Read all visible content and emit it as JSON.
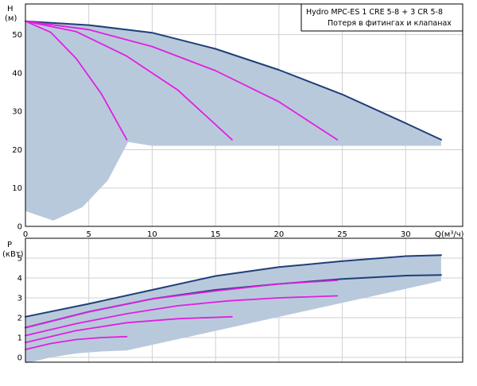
{
  "charts": {
    "head": {
      "legend_line1": "Hydro MPC-ES 1 CRE 5-8  +  3 CR 5-8",
      "legend_line2": "Потеря в фитингах и клапанах",
      "y_axis_label_1": "H",
      "y_axis_label_2": "(м)",
      "x_axis_label": "Q(м³/ч)"
    },
    "power": {
      "y_axis_label_1": "P",
      "y_axis_label_2": "(кВт)"
    }
  },
  "colors": {
    "background": "#ffffff",
    "grid": "#d0d0d0",
    "frame": "#000000",
    "area_fill": "#b9c9dc",
    "max_curve": "#1f3f78",
    "pump_curves": "#e020e0"
  },
  "chart_data": [
    {
      "type": "line",
      "xlabel": "Q(м³/ч)",
      "ylabel": "H (м)",
      "xlim": [
        0,
        34.5
      ],
      "ylim": [
        0,
        58
      ],
      "x_ticks": [
        0,
        5,
        10,
        15,
        20,
        25,
        30
      ],
      "y_ticks": [
        0,
        10,
        20,
        30,
        40,
        50
      ],
      "grid": true,
      "legend": [
        "Hydro MPC-ES 1 CRE 5-8  +  3 CR 5-8",
        "Потеря в фитингах и клапанах"
      ],
      "legend_position": "top-right",
      "series": [
        {
          "style": "max",
          "x": [
            0,
            5,
            10,
            15,
            20,
            25,
            30,
            32.8
          ],
          "y": [
            53.5,
            52.5,
            50.5,
            46.3,
            40.8,
            34.4,
            26.9,
            22.6
          ]
        },
        {
          "style": "pump",
          "x": [
            0,
            2,
            4,
            6,
            8
          ],
          "y": [
            53.5,
            50.6,
            43.8,
            34.5,
            22.6
          ]
        },
        {
          "style": "pump",
          "x": [
            0,
            4,
            8,
            12,
            16.3
          ],
          "y": [
            53.5,
            50.8,
            44.4,
            35.6,
            22.6
          ]
        },
        {
          "style": "pump",
          "x": [
            0,
            5,
            10,
            15,
            20,
            24.6
          ],
          "y": [
            53.5,
            51.3,
            46.9,
            40.6,
            32.5,
            22.6
          ]
        }
      ]
    },
    {
      "type": "line",
      "xlabel": "",
      "ylabel": "P (кВт)",
      "xlim": [
        0,
        34.5
      ],
      "ylim": [
        0,
        6
      ],
      "x_ticks": [
        0,
        5,
        10,
        15,
        20,
        25,
        30
      ],
      "y_ticks": [
        0,
        1,
        2,
        3,
        4,
        5
      ],
      "grid": true,
      "series": [
        {
          "style": "max",
          "x": [
            0,
            5,
            10,
            15,
            20,
            25,
            30,
            32.8
          ],
          "y": [
            2.05,
            2.7,
            3.4,
            4.1,
            4.55,
            4.85,
            5.1,
            5.15
          ]
        },
        {
          "style": "max",
          "x": [
            0,
            5,
            10,
            15,
            20,
            25,
            30,
            32.8
          ],
          "y": [
            1.5,
            2.3,
            2.95,
            3.4,
            3.7,
            3.95,
            4.12,
            4.15
          ]
        },
        {
          "style": "pump",
          "x": [
            0,
            5,
            10,
            15,
            20,
            24.6
          ],
          "y": [
            1.5,
            2.3,
            2.95,
            3.35,
            3.7,
            3.88
          ]
        },
        {
          "style": "pump",
          "x": [
            0,
            4,
            8,
            12,
            16,
            20,
            24.6
          ],
          "y": [
            1.1,
            1.7,
            2.2,
            2.6,
            2.85,
            3.0,
            3.1
          ]
        },
        {
          "style": "pump",
          "x": [
            0,
            4,
            8,
            12,
            16.3
          ],
          "y": [
            0.75,
            1.35,
            1.75,
            1.95,
            2.05
          ]
        },
        {
          "style": "pump",
          "x": [
            0,
            2,
            4,
            6,
            8
          ],
          "y": [
            0.4,
            0.7,
            0.9,
            1.0,
            1.05
          ]
        }
      ]
    }
  ]
}
